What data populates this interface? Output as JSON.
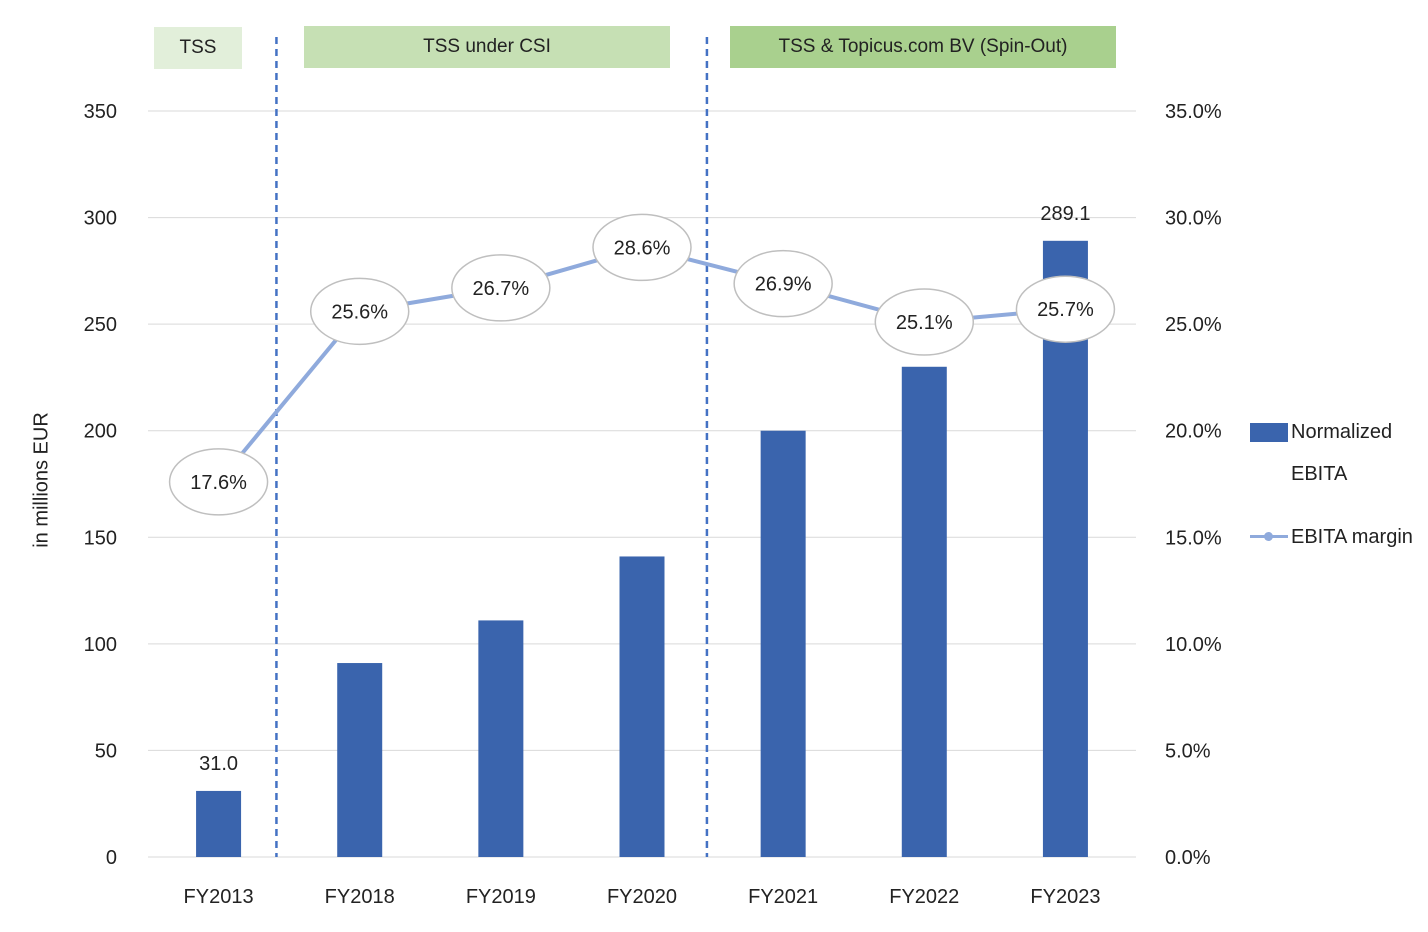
{
  "phases": [
    {
      "label": "TSS",
      "color": "#e2efda"
    },
    {
      "label": "TSS under CSI",
      "color": "#c6e0b4"
    },
    {
      "label": "TSS & Topicus.com BV (Spin-Out)",
      "color": "#a9d08e"
    }
  ],
  "colors": {
    "bar": "#3a64ad",
    "line": "#8faadc",
    "divider": "#4472c4",
    "grid": "#d9d9d9"
  },
  "chart_data": {
    "type": "bar",
    "title": "",
    "categories": [
      "FY2013",
      "FY2018",
      "FY2019",
      "FY2020",
      "FY2021",
      "FY2022",
      "FY2023"
    ],
    "ylabel": "in millions EUR",
    "ylim": [
      0,
      350
    ],
    "yticks": [
      "0",
      "50",
      "100",
      "150",
      "200",
      "250",
      "300",
      "350"
    ],
    "y2lim": [
      0,
      35
    ],
    "y2ticks": [
      "0.0%",
      "5.0%",
      "10.0%",
      "15.0%",
      "20.0%",
      "25.0%",
      "30.0%",
      "35.0%"
    ],
    "grid": true,
    "legend_position": "right",
    "series": [
      {
        "name": "Normalized EBITA",
        "type": "bar",
        "axis": "left",
        "values": [
          31.0,
          91,
          111,
          141,
          200,
          230,
          289.1
        ],
        "data_labels": [
          "31.0",
          "",
          "",
          "",
          "",
          "",
          "289.1"
        ]
      },
      {
        "name": "EBITA margin",
        "type": "line",
        "axis": "right",
        "values": [
          17.6,
          25.6,
          26.7,
          28.6,
          26.9,
          25.1,
          25.7
        ],
        "data_labels": [
          "17.6%",
          "25.6%",
          "26.7%",
          "28.6%",
          "26.9%",
          "25.1%",
          "25.7%"
        ]
      }
    ],
    "legend": {
      "bar_line1": "Normalized",
      "bar_line2": "EBITA",
      "line_label": "EBITA margin"
    }
  }
}
